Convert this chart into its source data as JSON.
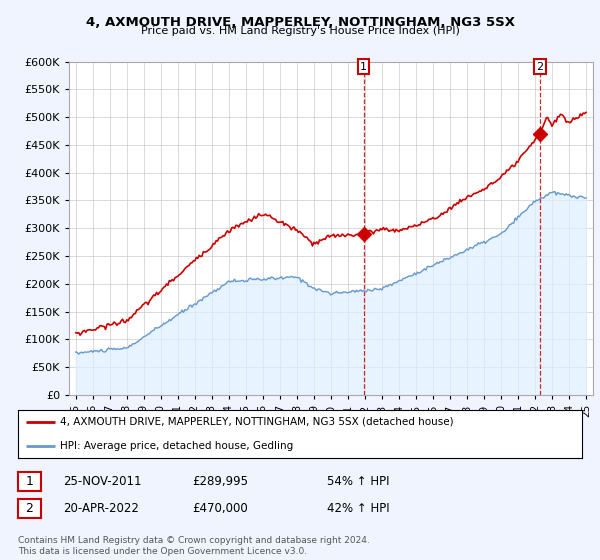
{
  "title": "4, AXMOUTH DRIVE, MAPPERLEY, NOTTINGHAM, NG3 5SX",
  "subtitle": "Price paid vs. HM Land Registry's House Price Index (HPI)",
  "legend_line1": "4, AXMOUTH DRIVE, MAPPERLEY, NOTTINGHAM, NG3 5SX (detached house)",
  "legend_line2": "HPI: Average price, detached house, Gedling",
  "annotation1_date": "25-NOV-2011",
  "annotation1_price": "£289,995",
  "annotation1_hpi": "54% ↑ HPI",
  "annotation2_date": "20-APR-2022",
  "annotation2_price": "£470,000",
  "annotation2_hpi": "42% ↑ HPI",
  "footer": "Contains HM Land Registry data © Crown copyright and database right 2024.\nThis data is licensed under the Open Government Licence v3.0.",
  "red_color": "#cc0000",
  "blue_color": "#6699cc",
  "blue_fill_color": "#ddeeff",
  "background_color": "#f0f4ff",
  "plot_bg_color": "#ffffff",
  "ylim": [
    0,
    600000
  ],
  "yticks": [
    0,
    50000,
    100000,
    150000,
    200000,
    250000,
    300000,
    350000,
    400000,
    450000,
    500000,
    550000,
    600000
  ],
  "sale1_x": 2011.92,
  "sale1_y": 289995,
  "sale2_x": 2022.29,
  "sale2_y": 470000,
  "xlim_left": 1994.6,
  "xlim_right": 2025.4
}
